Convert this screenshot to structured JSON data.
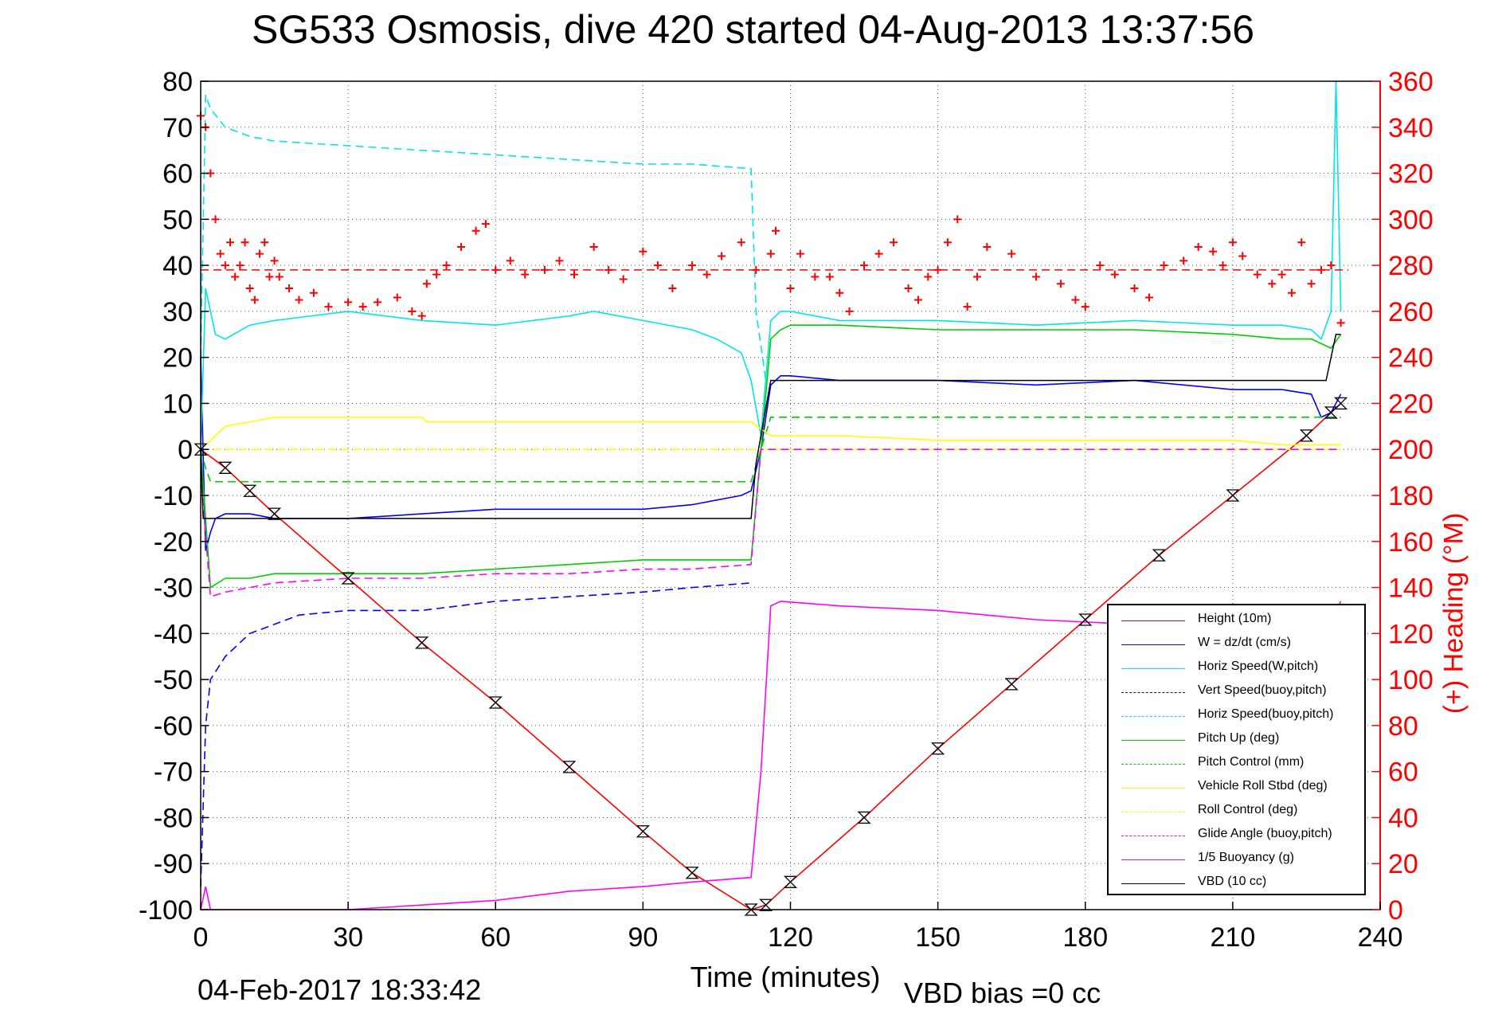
{
  "title": "SG533 Osmosis, dive 420 started 04-Aug-2013 13:37:56",
  "footer": {
    "timestamp": "04-Feb-2017 18:33:42",
    "vbd_bias": "VBD bias =0 cc"
  },
  "chart_data": {
    "type": "line",
    "title": "SG533 Osmosis, dive 420 started 04-Aug-2013 13:37:56",
    "xlabel": "Time (minutes)",
    "ylabel": "",
    "y2label": "(+) Heading (°M)",
    "xlim": [
      0,
      240
    ],
    "ylim": [
      -100,
      80
    ],
    "y2lim": [
      0,
      360
    ],
    "x_ticks": [
      "0",
      "30",
      "60",
      "90",
      "120",
      "150",
      "180",
      "210",
      "240"
    ],
    "y_ticks": [
      "80",
      "70",
      "60",
      "50",
      "40",
      "30",
      "20",
      "10",
      "0",
      "-10",
      "-20",
      "-30",
      "-40",
      "-50",
      "-60",
      "-70",
      "-80",
      "-90",
      "-100"
    ],
    "y2_ticks": [
      "360",
      "340",
      "320",
      "300",
      "280",
      "260",
      "240",
      "220",
      "200",
      "180",
      "160",
      "140",
      "120",
      "100",
      "80",
      "60",
      "40",
      "20",
      "0"
    ],
    "grid": true,
    "legend_position": "bottom-right",
    "heading_reference": 278,
    "series": [
      {
        "name": "Height (10m)",
        "color": "#ff0000",
        "style": "solid",
        "x": [
          0,
          5,
          10,
          15,
          30,
          45,
          60,
          75,
          90,
          100,
          112,
          115,
          120,
          135,
          150,
          165,
          180,
          195,
          210,
          225,
          230,
          232
        ],
        "y": [
          0,
          -4,
          -9,
          -14,
          -28,
          -42,
          -55,
          -69,
          -83,
          -92,
          -100,
          -99,
          -94,
          -80,
          -65,
          -51,
          -37,
          -23,
          -10,
          3,
          8,
          10
        ]
      },
      {
        "name": "W = dz/dt (cm/s)",
        "color": "#0000ff",
        "style": "solid",
        "x": [
          0,
          1,
          2,
          3,
          5,
          10,
          15,
          30,
          45,
          60,
          75,
          90,
          100,
          110,
          112,
          114,
          116,
          118,
          120,
          130,
          150,
          170,
          190,
          210,
          220,
          226,
          228,
          230,
          232
        ],
        "y": [
          20,
          -22,
          -18,
          -15,
          -14,
          -14,
          -15,
          -15,
          -14,
          -13,
          -13,
          -13,
          -12,
          -10,
          -9,
          0,
          14,
          16,
          16,
          15,
          15,
          14,
          15,
          13,
          13,
          12,
          7,
          8,
          12
        ]
      },
      {
        "name": "Horiz Speed(W,pitch)",
        "color": "#00e5e5",
        "style": "solid",
        "x": [
          0,
          1,
          2,
          3,
          5,
          10,
          15,
          30,
          45,
          60,
          75,
          80,
          90,
          100,
          105,
          110,
          112,
          114,
          116,
          118,
          120,
          130,
          150,
          170,
          190,
          210,
          220,
          226,
          228,
          230,
          231,
          232
        ],
        "y": [
          0,
          35,
          30,
          25,
          24,
          27,
          28,
          30,
          28,
          27,
          29,
          30,
          28,
          26,
          24,
          21,
          15,
          3,
          28,
          30,
          30,
          28,
          28,
          27,
          28,
          27,
          27,
          26,
          24,
          30,
          80,
          30
        ]
      },
      {
        "name": "Vert Speed(buoy,pitch)",
        "color": "#0000ff",
        "style": "dashed",
        "x": [
          0,
          1,
          2,
          5,
          10,
          15,
          20,
          30,
          45,
          60,
          75,
          90,
          100,
          112
        ],
        "y": [
          -95,
          -60,
          -50,
          -45,
          -40,
          -38,
          -36,
          -35,
          -35,
          -33,
          -32,
          -31,
          -30,
          -29
        ]
      },
      {
        "name": "Horiz Speed(buoy,pitch)",
        "color": "#00e5e5",
        "style": "dashed",
        "x": [
          0,
          1,
          2,
          5,
          10,
          15,
          30,
          45,
          60,
          75,
          90,
          100,
          112,
          113,
          115
        ],
        "y": [
          20,
          77,
          74,
          70,
          68,
          67,
          66,
          65,
          64,
          63,
          62,
          62,
          61,
          30,
          15
        ]
      },
      {
        "name": "Pitch Up (deg)",
        "color": "#00cc00",
        "style": "solid",
        "x": [
          0,
          2,
          5,
          10,
          15,
          30,
          45,
          60,
          75,
          90,
          100,
          112,
          114,
          116,
          118,
          120,
          130,
          150,
          170,
          190,
          210,
          220,
          226,
          230,
          232
        ],
        "y": [
          0,
          -30,
          -28,
          -28,
          -27,
          -27,
          -27,
          -26,
          -25,
          -24,
          -24,
          -24,
          0,
          24,
          26,
          27,
          27,
          26,
          26,
          26,
          25,
          24,
          24,
          22,
          25
        ]
      },
      {
        "name": "Pitch Control (mm)",
        "color": "#00cc00",
        "style": "dashed",
        "x": [
          0,
          1,
          2,
          112,
          116,
          120,
          232
        ],
        "y": [
          0,
          -4,
          -7,
          -7,
          7,
          7,
          7
        ]
      },
      {
        "name": "Vehicle Roll Stbd (deg)",
        "color": "#ffff00",
        "style": "solid",
        "x": [
          0,
          5,
          10,
          15,
          30,
          45,
          46,
          60,
          75,
          90,
          100,
          112,
          116,
          120,
          130,
          150,
          170,
          190,
          210,
          220,
          232
        ],
        "y": [
          0,
          5,
          6,
          7,
          7,
          7,
          6,
          6,
          6,
          6,
          6,
          6,
          3,
          3,
          3,
          2,
          2,
          2,
          2,
          1,
          1
        ]
      },
      {
        "name": "Roll Control (deg)",
        "color": "#ffff00",
        "style": "dashed",
        "x": [
          0,
          112,
          116,
          232
        ],
        "y": [
          0,
          0,
          0,
          0
        ]
      },
      {
        "name": "Glide Angle (buoy,pitch)",
        "color": "#ff00ff",
        "style": "dashed",
        "x": [
          0,
          2,
          5,
          10,
          15,
          30,
          45,
          60,
          75,
          90,
          100,
          112,
          114,
          116,
          232
        ],
        "y": [
          -5,
          -32,
          -31,
          -30,
          -29,
          -28,
          -28,
          -27,
          -27,
          -26,
          -26,
          -25,
          0,
          0,
          0
        ]
      },
      {
        "name": "1/5 Buoyancy (g)",
        "color": "#ff00ff",
        "style": "solid",
        "x": [
          0,
          1,
          2,
          3,
          5,
          10,
          20,
          30,
          45,
          60,
          75,
          90,
          100,
          112,
          114,
          116,
          118,
          130,
          150,
          170,
          190,
          210,
          220,
          228,
          230,
          232
        ],
        "y": [
          -100,
          -95,
          -100,
          -100,
          -100,
          -100,
          -100,
          -100,
          -99,
          -98,
          -96,
          -95,
          -94,
          -93,
          -70,
          -34,
          -33,
          -34,
          -35,
          -37,
          -38,
          -38,
          -39,
          -40,
          -37,
          -33
        ]
      },
      {
        "name": "VBD (10 cc)",
        "color": "#000000",
        "style": "solid",
        "x": [
          0,
          0.5,
          1,
          2,
          112,
          113,
          116,
          117,
          120,
          200,
          229,
          230,
          231,
          232
        ],
        "y": [
          0,
          -15,
          -15,
          -15,
          -15,
          -3,
          15,
          15,
          15,
          15,
          15,
          20,
          25,
          25
        ]
      }
    ],
    "heading_series": {
      "name": "(+) Heading",
      "color": "#ff0000",
      "axis": "right",
      "x": [
        0,
        1,
        2,
        3,
        4,
        5,
        6,
        7,
        8,
        9,
        10,
        11,
        12,
        13,
        14,
        15,
        16,
        18,
        20,
        23,
        26,
        30,
        33,
        36,
        40,
        43,
        45,
        46,
        48,
        50,
        53,
        56,
        58,
        60,
        63,
        66,
        70,
        73,
        76,
        80,
        83,
        86,
        90,
        93,
        96,
        100,
        103,
        106,
        110,
        113,
        116,
        117,
        120,
        122,
        125,
        128,
        130,
        132,
        135,
        138,
        141,
        144,
        146,
        148,
        150,
        152,
        154,
        156,
        158,
        160,
        165,
        170,
        175,
        178,
        180,
        183,
        186,
        190,
        193,
        196,
        200,
        203,
        206,
        208,
        210,
        212,
        215,
        218,
        220,
        222,
        224,
        226,
        228,
        230,
        232
      ],
      "y": [
        345,
        340,
        320,
        300,
        285,
        280,
        290,
        275,
        280,
        290,
        270,
        265,
        285,
        290,
        275,
        282,
        275,
        270,
        265,
        268,
        262,
        264,
        262,
        264,
        266,
        260,
        258,
        272,
        276,
        280,
        288,
        295,
        298,
        278,
        282,
        276,
        278,
        282,
        276,
        288,
        278,
        274,
        286,
        280,
        270,
        280,
        276,
        284,
        290,
        278,
        285,
        295,
        270,
        285,
        275,
        275,
        268,
        260,
        280,
        285,
        290,
        270,
        265,
        275,
        278,
        290,
        300,
        262,
        275,
        288,
        285,
        275,
        272,
        265,
        262,
        280,
        276,
        270,
        266,
        280,
        282,
        288,
        286,
        280,
        290,
        284,
        276,
        272,
        276,
        268,
        290,
        272,
        278,
        280,
        255
      ]
    }
  }
}
